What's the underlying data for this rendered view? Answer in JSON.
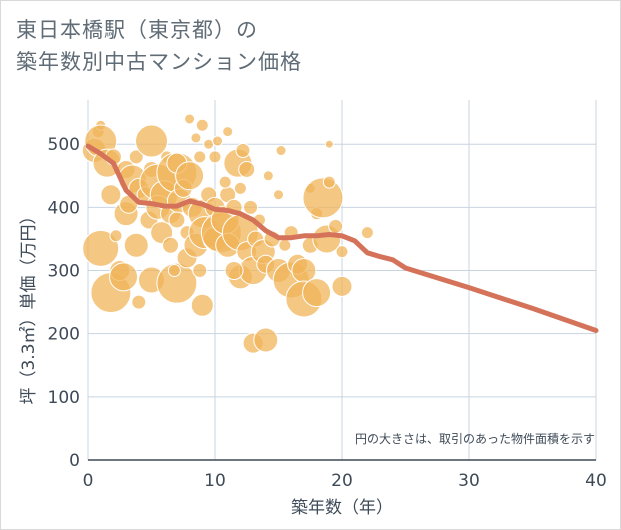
{
  "title_line1": "東日本橋駅（東京都）の",
  "title_line2": "築年数別中古マンション価格",
  "note": "円の大きさは、取引のあった物件面積を示す",
  "colors": {
    "bubble": "#f0b45a",
    "bubble_stroke": "#ffffff",
    "line": "#d4735a",
    "grid": "#c8d4e0",
    "text": "#3e4a57"
  },
  "chart_data": {
    "type": "scatter",
    "xlabel": "築年数（年）",
    "ylabel": "坪（3.3㎡）単価（万円）",
    "xlim": [
      0,
      40
    ],
    "ylim": [
      0,
      570
    ],
    "x_ticks": [
      0,
      10,
      20,
      30,
      40
    ],
    "y_ticks": [
      0,
      100,
      200,
      300,
      400,
      500
    ],
    "grid": true,
    "bubbles": [
      {
        "x": 0.5,
        "y": 490,
        "s": 12
      },
      {
        "x": 0.8,
        "y": 520,
        "s": 6
      },
      {
        "x": 1,
        "y": 530,
        "s": 5
      },
      {
        "x": 1,
        "y": 505,
        "s": 16
      },
      {
        "x": 1.5,
        "y": 470,
        "s": 14
      },
      {
        "x": 2,
        "y": 480,
        "s": 8
      },
      {
        "x": 1.8,
        "y": 420,
        "s": 10
      },
      {
        "x": 1,
        "y": 335,
        "s": 18
      },
      {
        "x": 1.8,
        "y": 265,
        "s": 20
      },
      {
        "x": 2.5,
        "y": 300,
        "s": 10
      },
      {
        "x": 2.8,
        "y": 290,
        "s": 14
      },
      {
        "x": 3,
        "y": 390,
        "s": 12
      },
      {
        "x": 3,
        "y": 460,
        "s": 9
      },
      {
        "x": 3.5,
        "y": 445,
        "s": 14
      },
      {
        "x": 3.8,
        "y": 480,
        "s": 7
      },
      {
        "x": 4,
        "y": 430,
        "s": 10
      },
      {
        "x": 3.8,
        "y": 340,
        "s": 12
      },
      {
        "x": 4,
        "y": 250,
        "s": 7
      },
      {
        "x": 4.5,
        "y": 420,
        "s": 8
      },
      {
        "x": 4.8,
        "y": 380,
        "s": 9
      },
      {
        "x": 5,
        "y": 460,
        "s": 8
      },
      {
        "x": 5,
        "y": 505,
        "s": 16
      },
      {
        "x": 5.5,
        "y": 440,
        "s": 18
      },
      {
        "x": 5.5,
        "y": 400,
        "s": 12
      },
      {
        "x": 5.8,
        "y": 360,
        "s": 11
      },
      {
        "x": 5,
        "y": 285,
        "s": 13
      },
      {
        "x": 6,
        "y": 420,
        "s": 14
      },
      {
        "x": 6.2,
        "y": 480,
        "s": 6
      },
      {
        "x": 6.5,
        "y": 390,
        "s": 10
      },
      {
        "x": 6.5,
        "y": 340,
        "s": 8
      },
      {
        "x": 7,
        "y": 455,
        "s": 20
      },
      {
        "x": 7,
        "y": 470,
        "s": 10
      },
      {
        "x": 7.2,
        "y": 410,
        "s": 12
      },
      {
        "x": 7,
        "y": 380,
        "s": 8
      },
      {
        "x": 7,
        "y": 280,
        "s": 20
      },
      {
        "x": 7.5,
        "y": 430,
        "s": 9
      },
      {
        "x": 7.8,
        "y": 360,
        "s": 7
      },
      {
        "x": 7.8,
        "y": 320,
        "s": 10
      },
      {
        "x": 8,
        "y": 540,
        "s": 5
      },
      {
        "x": 8,
        "y": 450,
        "s": 14
      },
      {
        "x": 8.2,
        "y": 400,
        "s": 10
      },
      {
        "x": 8.5,
        "y": 340,
        "s": 12
      },
      {
        "x": 8.5,
        "y": 510,
        "s": 5
      },
      {
        "x": 8.8,
        "y": 480,
        "s": 6
      },
      {
        "x": 9,
        "y": 530,
        "s": 6
      },
      {
        "x": 9,
        "y": 390,
        "s": 14
      },
      {
        "x": 9,
        "y": 245,
        "s": 11
      },
      {
        "x": 9.2,
        "y": 360,
        "s": 16
      },
      {
        "x": 9.5,
        "y": 420,
        "s": 8
      },
      {
        "x": 9.5,
        "y": 500,
        "s": 5
      },
      {
        "x": 10,
        "y": 480,
        "s": 6
      },
      {
        "x": 10,
        "y": 400,
        "s": 10
      },
      {
        "x": 10,
        "y": 350,
        "s": 12
      },
      {
        "x": 10.2,
        "y": 505,
        "s": 5
      },
      {
        "x": 10.5,
        "y": 360,
        "s": 20
      },
      {
        "x": 10.8,
        "y": 380,
        "s": 14
      },
      {
        "x": 11,
        "y": 340,
        "s": 12
      },
      {
        "x": 11,
        "y": 420,
        "s": 8
      },
      {
        "x": 11,
        "y": 520,
        "s": 5
      },
      {
        "x": 11.5,
        "y": 400,
        "s": 8
      },
      {
        "x": 11.8,
        "y": 470,
        "s": 14
      },
      {
        "x": 12,
        "y": 430,
        "s": 6
      },
      {
        "x": 12,
        "y": 360,
        "s": 18
      },
      {
        "x": 12,
        "y": 290,
        "s": 12
      },
      {
        "x": 12.2,
        "y": 490,
        "s": 7
      },
      {
        "x": 12.5,
        "y": 460,
        "s": 8
      },
      {
        "x": 12.5,
        "y": 330,
        "s": 10
      },
      {
        "x": 12.8,
        "y": 400,
        "s": 7
      },
      {
        "x": 13,
        "y": 300,
        "s": 14
      },
      {
        "x": 13,
        "y": 185,
        "s": 10
      },
      {
        "x": 13.2,
        "y": 350,
        "s": 8
      },
      {
        "x": 13.5,
        "y": 380,
        "s": 6
      },
      {
        "x": 13.8,
        "y": 330,
        "s": 12
      },
      {
        "x": 14,
        "y": 190,
        "s": 12
      },
      {
        "x": 14,
        "y": 310,
        "s": 9
      },
      {
        "x": 14.2,
        "y": 450,
        "s": 5
      },
      {
        "x": 14.5,
        "y": 350,
        "s": 8
      },
      {
        "x": 15,
        "y": 420,
        "s": 5
      },
      {
        "x": 15,
        "y": 300,
        "s": 12
      },
      {
        "x": 15.2,
        "y": 490,
        "s": 5
      },
      {
        "x": 15.5,
        "y": 340,
        "s": 6
      },
      {
        "x": 16,
        "y": 285,
        "s": 18
      },
      {
        "x": 16,
        "y": 360,
        "s": 7
      },
      {
        "x": 16.5,
        "y": 310,
        "s": 10
      },
      {
        "x": 17,
        "y": 300,
        "s": 12
      },
      {
        "x": 17,
        "y": 255,
        "s": 18
      },
      {
        "x": 17.5,
        "y": 340,
        "s": 8
      },
      {
        "x": 17.5,
        "y": 430,
        "s": 5
      },
      {
        "x": 18,
        "y": 265,
        "s": 14
      },
      {
        "x": 18,
        "y": 390,
        "s": 6
      },
      {
        "x": 18.5,
        "y": 415,
        "s": 20
      },
      {
        "x": 18.8,
        "y": 350,
        "s": 14
      },
      {
        "x": 19,
        "y": 500,
        "s": 4
      },
      {
        "x": 19,
        "y": 440,
        "s": 6
      },
      {
        "x": 19.5,
        "y": 370,
        "s": 7
      },
      {
        "x": 20,
        "y": 275,
        "s": 10
      },
      {
        "x": 20,
        "y": 330,
        "s": 6
      },
      {
        "x": 22,
        "y": 360,
        "s": 6
      },
      {
        "x": 3.2,
        "y": 405,
        "s": 9
      },
      {
        "x": 2.2,
        "y": 355,
        "s": 6
      },
      {
        "x": 6.8,
        "y": 300,
        "s": 6
      },
      {
        "x": 8.8,
        "y": 300,
        "s": 7
      },
      {
        "x": 11.5,
        "y": 300,
        "s": 9
      },
      {
        "x": 10.8,
        "y": 440,
        "s": 6
      }
    ],
    "series": [
      {
        "type": "line",
        "x": [
          0,
          1,
          2,
          3,
          4,
          5,
          6,
          7,
          8,
          9,
          10,
          11,
          12,
          13,
          14,
          15,
          16,
          17,
          18,
          19,
          20,
          21,
          22,
          23,
          24,
          25,
          30,
          35,
          40
        ],
        "values": [
          497,
          485,
          470,
          427,
          408,
          406,
          402,
          402,
          410,
          405,
          397,
          395,
          390,
          380,
          363,
          352,
          352,
          355,
          355,
          357,
          355,
          347,
          328,
          322,
          317,
          304,
          273,
          240,
          205
        ]
      }
    ]
  }
}
